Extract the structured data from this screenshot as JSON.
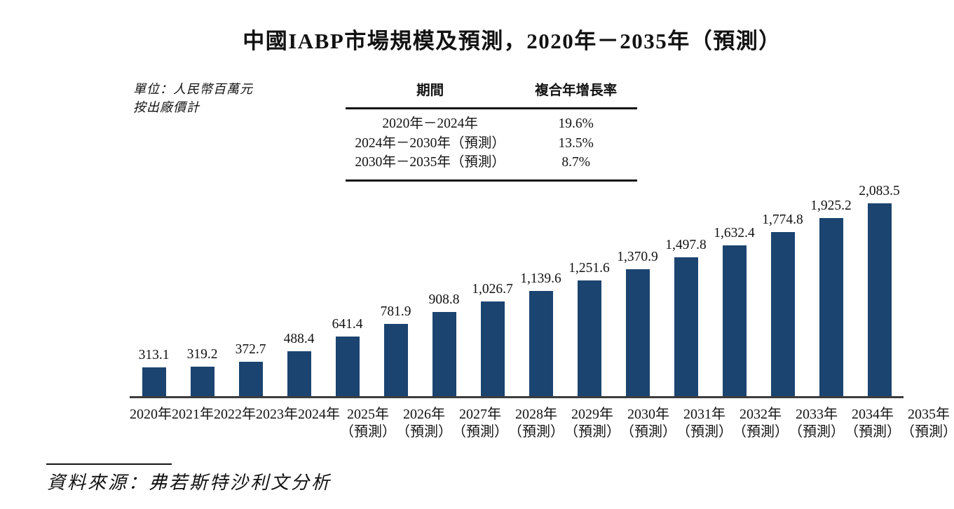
{
  "title": "中國IABP市場規模及預測，2020年－2035年（預測）",
  "unit_label": {
    "line1": "單位：人民幣百萬元",
    "line2": "按出廠價計"
  },
  "cagr_table": {
    "headers": {
      "period": "期間",
      "cagr": "複合年增長率"
    },
    "rows": [
      {
        "period": "2020年－2024年",
        "cagr": "19.6%"
      },
      {
        "period": "2024年－2030年（預測）",
        "cagr": "13.5%"
      },
      {
        "period": "2030年－2035年（預測）",
        "cagr": "8.7%"
      }
    ]
  },
  "chart_data": {
    "type": "bar",
    "title": "中國IABP市場規模及預測，2020年－2035年（預測）",
    "unit": "人民幣百萬元",
    "price_basis": "按出廠價計",
    "categories": [
      "2020年",
      "2021年",
      "2022年",
      "2023年",
      "2024年",
      "2025年（預測）",
      "2026年（預測）",
      "2027年（預測）",
      "2028年（預測）",
      "2029年（預測）",
      "2030年（預測）",
      "2031年（預測）",
      "2032年（預測）",
      "2033年（預測）",
      "2034年（預測）",
      "2035年（預測）"
    ],
    "x_line1": [
      "2020年",
      "2021年",
      "2022年",
      "2023年",
      "2024年",
      "2025年",
      "2026年",
      "2027年",
      "2028年",
      "2029年",
      "2030年",
      "2031年",
      "2032年",
      "2033年",
      "2034年",
      "2035年"
    ],
    "x_line2": [
      "",
      "",
      "",
      "",
      "",
      "（預測）",
      "（預測）",
      "（預測）",
      "（預測）",
      "（預測）",
      "（預測）",
      "（預測）",
      "（預測）",
      "（預測）",
      "（預測）",
      "（預測）"
    ],
    "values": [
      313.1,
      319.2,
      372.7,
      488.4,
      641.4,
      781.9,
      908.8,
      1026.7,
      1139.6,
      1251.6,
      1370.9,
      1497.8,
      1632.4,
      1774.8,
      1925.2,
      2083.5
    ],
    "value_labels": [
      "313.1",
      "319.2",
      "372.7",
      "488.4",
      "641.4",
      "781.9",
      "908.8",
      "1,026.7",
      "1,139.6",
      "1,251.6",
      "1,370.9",
      "1,497.8",
      "1,632.4",
      "1,774.8",
      "1,925.2",
      "2,083.5"
    ],
    "ylim": [
      0,
      2083.5
    ],
    "grid": false,
    "legend": "none",
    "bar_color": "#1b4470"
  },
  "source": "資料來源：弗若斯特沙利文分析",
  "colors": {
    "bar": "#1b4470",
    "axis": "#3d3d3d",
    "text": "#121212",
    "rule": "#141414"
  }
}
